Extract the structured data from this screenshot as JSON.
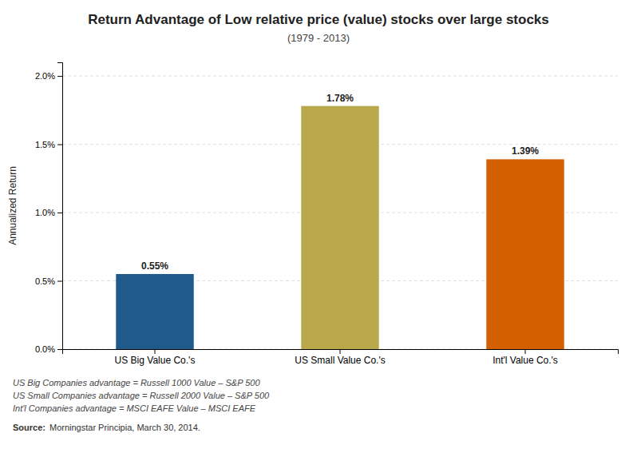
{
  "chart_data": {
    "type": "bar",
    "title": "Return Advantage of Low relative price (value) stocks over large stocks",
    "subtitle": "(1979 - 2013)",
    "y_label": "Annualized Return",
    "categories": [
      "US Big Value Co.'s",
      "US Small Value Co.'s",
      "Int'l Value Co.'s"
    ],
    "values": [
      0.0055,
      0.0178,
      0.0139
    ],
    "value_labels": [
      "0.55%",
      "1.78%",
      "1.39%"
    ],
    "colors": [
      "#1f5a8b",
      "#b8a84a",
      "#d45f00"
    ],
    "ylim": [
      0,
      0.021
    ],
    "yticks": [
      {
        "value": 0.0,
        "label": "0.0%"
      },
      {
        "value": 0.005,
        "label": "0.5%"
      },
      {
        "value": 0.01,
        "label": "1.0%"
      },
      {
        "value": 0.015,
        "label": "1.5%"
      },
      {
        "value": 0.02,
        "label": "2.0%"
      }
    ],
    "grid": true,
    "data_labels": true,
    "annotations": [
      "US Big Companies advantage = Russell 1000 Value – S&P 500",
      "US Small Companies advantage = Russell 2000 Value – S&P 500",
      "Int'l Companies advantage = MSCI EAFE Value – MSCI EAFE",
      "Source:",
      "Morningstar Principia, March 30, 2014."
    ]
  }
}
